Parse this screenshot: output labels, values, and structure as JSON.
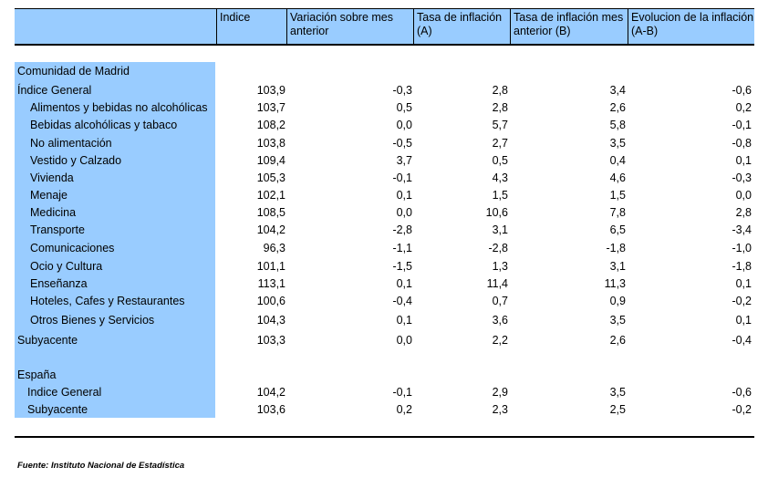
{
  "header": {
    "col1": "Indice",
    "col2": "Variación sobre mes anterior",
    "col3": "Tasa de inflación (A)",
    "col4": "Tasa de inflación mes anterior (B)",
    "col5": "Evolucion de la inflación (A-B)"
  },
  "madrid": {
    "title": "Comunidad de Madrid",
    "rows": [
      {
        "label": "Índice General",
        "indice": "103,9",
        "variacion": "-0,3",
        "tasa": "2,8",
        "tasa_ant": "3,4",
        "evolucion": "-0,6"
      },
      {
        "label": "Alimentos y bebidas no alcohólicas",
        "indice": "103,7",
        "variacion": "0,5",
        "tasa": "2,8",
        "tasa_ant": "2,6",
        "evolucion": "0,2"
      },
      {
        "label": "Bebidas alcohólicas y tabaco",
        "indice": "108,2",
        "variacion": "0,0",
        "tasa": "5,7",
        "tasa_ant": "5,8",
        "evolucion": "-0,1"
      },
      {
        "label": "No alimentación",
        "indice": "103,8",
        "variacion": "-0,5",
        "tasa": "2,7",
        "tasa_ant": "3,5",
        "evolucion": "-0,8"
      },
      {
        "label": "Vestido y Calzado",
        "indice": "109,4",
        "variacion": "3,7",
        "tasa": "0,5",
        "tasa_ant": "0,4",
        "evolucion": "0,1"
      },
      {
        "label": "Vivienda",
        "indice": "105,3",
        "variacion": "-0,1",
        "tasa": "4,3",
        "tasa_ant": "4,6",
        "evolucion": "-0,3"
      },
      {
        "label": "Menaje",
        "indice": "102,1",
        "variacion": "0,1",
        "tasa": "1,5",
        "tasa_ant": "1,5",
        "evolucion": "0,0"
      },
      {
        "label": "Medicina",
        "indice": "108,5",
        "variacion": "0,0",
        "tasa": "10,6",
        "tasa_ant": "7,8",
        "evolucion": "2,8"
      },
      {
        "label": "Transporte",
        "indice": "104,2",
        "variacion": "-2,8",
        "tasa": "3,1",
        "tasa_ant": "6,5",
        "evolucion": "-3,4"
      },
      {
        "label": "Comunicaciones",
        "indice": "96,3",
        "variacion": "-1,1",
        "tasa": "-2,8",
        "tasa_ant": "-1,8",
        "evolucion": "-1,0"
      },
      {
        "label": "Ocio y Cultura",
        "indice": "101,1",
        "variacion": "-1,5",
        "tasa": "1,3",
        "tasa_ant": "3,1",
        "evolucion": "-1,8"
      },
      {
        "label": "Enseñanza",
        "indice": "113,1",
        "variacion": "0,1",
        "tasa": "11,4",
        "tasa_ant": "11,3",
        "evolucion": "0,1"
      },
      {
        "label": "Hoteles, Cafes y Restaurantes",
        "indice": "100,6",
        "variacion": "-0,4",
        "tasa": "0,7",
        "tasa_ant": "0,9",
        "evolucion": "-0,2"
      },
      {
        "label": "Otros Bienes y Servicios",
        "indice": "104,3",
        "variacion": "0,1",
        "tasa": "3,6",
        "tasa_ant": "3,5",
        "evolucion": "0,1"
      },
      {
        "label": "Subyacente",
        "indice": "103,3",
        "variacion": "0,0",
        "tasa": "2,2",
        "tasa_ant": "2,6",
        "evolucion": "-0,4"
      }
    ]
  },
  "espana": {
    "title": "España",
    "rows": [
      {
        "label": "Indice General",
        "indice": "104,2",
        "variacion": "-0,1",
        "tasa": "2,9",
        "tasa_ant": "3,5",
        "evolucion": "-0,6"
      },
      {
        "label": "Subyacente",
        "indice": "103,6",
        "variacion": "0,2",
        "tasa": "2,3",
        "tasa_ant": "2,5",
        "evolucion": "-0,2"
      }
    ]
  },
  "footer": "Fuente: Instituto Nacional de Estadística"
}
